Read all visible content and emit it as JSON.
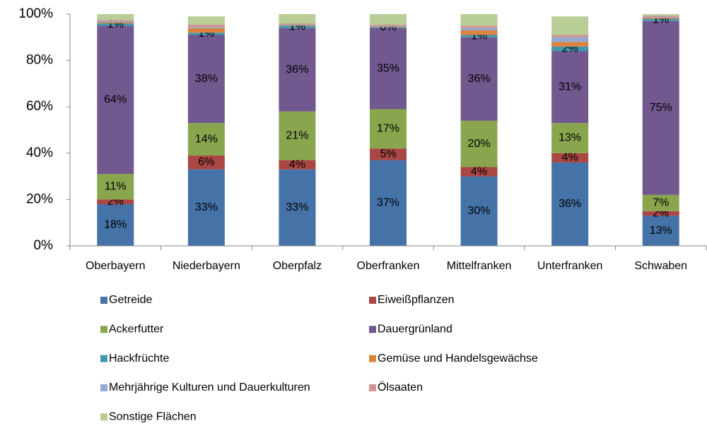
{
  "chart_data": {
    "type": "stacked_bar",
    "categories": [
      "Oberbayern",
      "Niederbayern",
      "Oberpfalz",
      "Oberfranken",
      "Mittelfranken",
      "Unterfranken",
      "Schwaben"
    ],
    "series": [
      {
        "name": "Getreide",
        "color": "#4572A7",
        "values": [
          18,
          33,
          33,
          37,
          30,
          36,
          13
        ],
        "value_labels": [
          "18%",
          "33%",
          "33%",
          "37%",
          "30%",
          "36%",
          "13%"
        ]
      },
      {
        "name": "Eiweißpflanzen",
        "color": "#AA4643",
        "values": [
          2,
          6,
          4,
          5,
          4,
          4,
          2
        ],
        "value_labels": [
          "2%",
          "6%",
          "4%",
          "5%",
          "4%",
          "4%",
          "2%"
        ]
      },
      {
        "name": "Ackerfutter",
        "color": "#89A54E",
        "values": [
          11,
          14,
          21,
          17,
          20,
          13,
          7
        ],
        "value_labels": [
          "11%",
          "14%",
          "21%",
          "17%",
          "20%",
          "13%",
          "7%"
        ]
      },
      {
        "name": "Dauergrünland",
        "color": "#71588F",
        "values": [
          64,
          38,
          36,
          35,
          36,
          31,
          75
        ],
        "value_labels": [
          "64%",
          "38%",
          "36%",
          "35%",
          "36%",
          "31%",
          "75%"
        ]
      },
      {
        "name": "Hackfrüchte",
        "color": "#4198AF",
        "values": [
          1,
          1,
          1,
          0.4,
          1,
          2,
          1
        ],
        "value_labels": [
          "1%",
          "1%",
          "1%",
          "0%",
          "1%",
          "2%",
          "1%"
        ]
      },
      {
        "name": "Gemüse und Handelsgewächse",
        "color": "#DB843D",
        "values": [
          0.5,
          2,
          0.3,
          0.3,
          2,
          2,
          0.5
        ]
      },
      {
        "name": "Mehrjährige Kulturen und Dauerkulturen",
        "color": "#93A9CF",
        "values": [
          0.5,
          0.5,
          0.3,
          0.3,
          1,
          2,
          0.3
        ]
      },
      {
        "name": "Ölsaaten",
        "color": "#D19392",
        "values": [
          0.5,
          1,
          0.4,
          0.5,
          1,
          1,
          0.5
        ]
      },
      {
        "name": "Sonstige Flächen",
        "color": "#B9CD96",
        "values": [
          2.5,
          3.5,
          4,
          4.5,
          5,
          8,
          0.7
        ]
      }
    ],
    "ylim": [
      0,
      100
    ],
    "yticks": [
      {
        "value": 0,
        "label": "0%"
      },
      {
        "value": 20,
        "label": "20%"
      },
      {
        "value": 40,
        "label": "40%"
      },
      {
        "value": 60,
        "label": "60%"
      },
      {
        "value": 80,
        "label": "80%"
      },
      {
        "value": 100,
        "label": "100%"
      }
    ]
  }
}
